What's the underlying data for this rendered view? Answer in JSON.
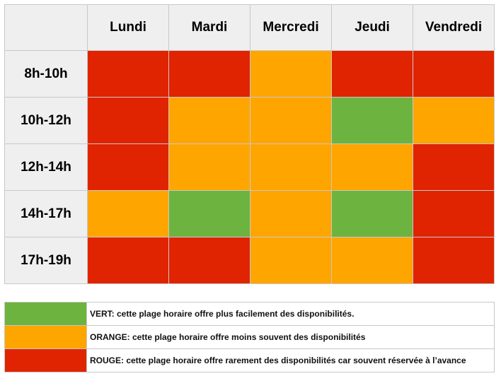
{
  "colors": {
    "green": "#6db33f",
    "orange": "#ffa500",
    "red": "#e02300"
  },
  "schedule": {
    "days": [
      "Lundi",
      "Mardi",
      "Mercredi",
      "Jeudi",
      "Vendredi"
    ],
    "slots": [
      {
        "label": "8h-10h",
        "cells": [
          "red",
          "red",
          "orange",
          "red",
          "red"
        ]
      },
      {
        "label": "10h-12h",
        "cells": [
          "red",
          "orange",
          "orange",
          "green",
          "orange"
        ]
      },
      {
        "label": "12h-14h",
        "cells": [
          "red",
          "orange",
          "orange",
          "orange",
          "red"
        ]
      },
      {
        "label": "14h-17h",
        "cells": [
          "orange",
          "green",
          "orange",
          "green",
          "red"
        ]
      },
      {
        "label": "17h-19h",
        "cells": [
          "red",
          "red",
          "orange",
          "orange",
          "red"
        ]
      }
    ]
  },
  "legend": [
    {
      "color": "green",
      "text": "VERT: cette plage horaire offre plus facilement des disponibilités."
    },
    {
      "color": "orange",
      "text": "ORANGE: cette plage horaire offre moins souvent des disponibilités"
    },
    {
      "color": "red",
      "text": "ROUGE: cette plage horaire offre rarement des disponibilités car souvent réservée à l’avance"
    }
  ]
}
